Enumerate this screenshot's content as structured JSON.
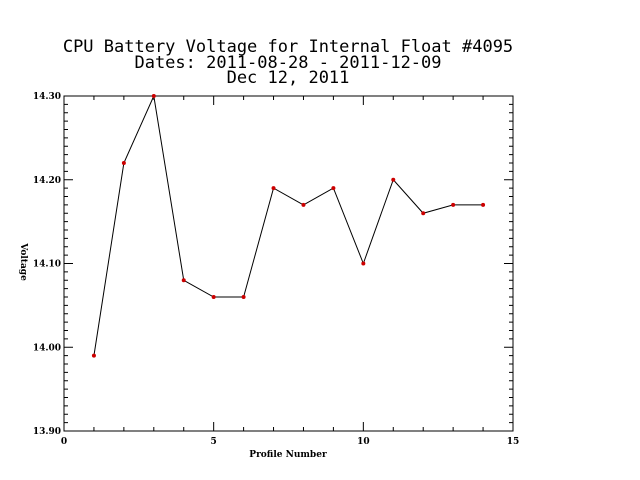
{
  "chart_data": {
    "type": "line",
    "title_lines": [
      "CPU Battery Voltage for Internal Float #4095",
      "Dates:  2011-08-28 -  2011-12-09",
      "Dec 12, 2011"
    ],
    "xlabel": "Profile Number",
    "ylabel": "Voltage",
    "xlim": [
      0,
      15
    ],
    "ylim": [
      13.9,
      14.3
    ],
    "x_ticks": [
      0,
      5,
      10,
      15
    ],
    "x_tick_labels": [
      "0",
      "5",
      "10",
      "15"
    ],
    "y_ticks": [
      13.9,
      14.0,
      14.1,
      14.2,
      14.3
    ],
    "y_tick_labels": [
      "13.90",
      "14.00",
      "14.10",
      "14.20",
      "14.30"
    ],
    "x": [
      1,
      2,
      3,
      4,
      5,
      6,
      7,
      8,
      9,
      10,
      11,
      12,
      13,
      14
    ],
    "values": [
      13.99,
      14.22,
      14.3,
      14.08,
      14.06,
      14.06,
      14.19,
      14.17,
      14.19,
      14.1,
      14.2,
      14.16,
      14.17,
      14.17
    ],
    "line_color": "#000000",
    "marker_color": "#cc0000",
    "grid": false
  }
}
